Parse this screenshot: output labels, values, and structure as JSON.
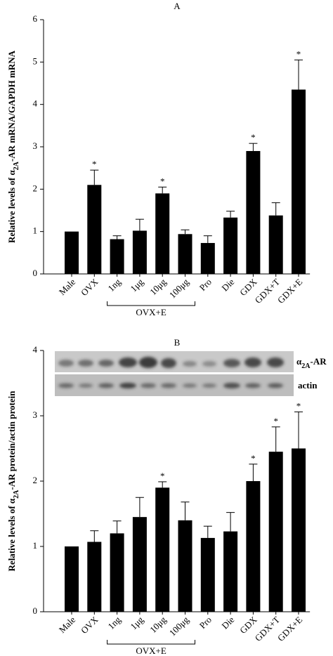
{
  "chart_data": [
    {
      "type": "bar",
      "title": "A",
      "ylabel": [
        "Relative levels of α",
        "2A",
        "-AR mRNA/GAPDH mRNA"
      ],
      "categories": [
        "Male",
        "OVX",
        "1ng",
        "1μg",
        "10μg",
        "100μg",
        "Pro",
        "Die",
        "GDX",
        "GDX+T",
        "GDX+E"
      ],
      "values": [
        1.0,
        2.1,
        0.82,
        1.02,
        1.9,
        0.94,
        0.73,
        1.33,
        2.9,
        1.38,
        4.35
      ],
      "errors": [
        0,
        0.35,
        0.08,
        0.27,
        0.15,
        0.1,
        0.17,
        0.15,
        0.18,
        0.3,
        0.7
      ],
      "color": "#000000",
      "ylim": [
        0,
        6
      ],
      "yticks": [
        0,
        1,
        2,
        3,
        4,
        5,
        6
      ],
      "group_label": "OVX+E",
      "annotations": [
        {
          "text": "*",
          "category": "OVX"
        },
        {
          "text": "*",
          "category": "10μg"
        },
        {
          "text": "*",
          "category": "GDX"
        },
        {
          "text": "*",
          "category": "GDX+E"
        }
      ]
    },
    {
      "type": "bar",
      "title": "B",
      "ylabel": [
        "Relative levels of α",
        "2A",
        "-AR protein/actin protein"
      ],
      "categories": [
        "Male",
        "OVX",
        "1ng",
        "1μg",
        "10μg",
        "100μg",
        "Pro",
        "Die",
        "GDX",
        "GDX+T",
        "GDX+E"
      ],
      "values": [
        1.0,
        1.07,
        1.2,
        1.45,
        1.9,
        1.4,
        1.13,
        1.23,
        2.0,
        2.45,
        2.5
      ],
      "errors": [
        0,
        0.17,
        0.19,
        0.3,
        0.09,
        0.28,
        0.18,
        0.29,
        0.26,
        0.38,
        0.56
      ],
      "color": "#000000",
      "ylim": [
        0,
        4
      ],
      "yticks": [
        0,
        1,
        2,
        3,
        4
      ],
      "group_label": "OVX+E",
      "blot_labels": [
        [
          "α",
          "2A",
          "-AR"
        ],
        "actin"
      ],
      "annotations": [
        {
          "text": "*",
          "category": "10μg"
        },
        {
          "text": "*",
          "category": "GDX"
        },
        {
          "text": "*",
          "category": "GDX+T"
        },
        {
          "text": "*",
          "category": "GDX+E"
        }
      ]
    }
  ]
}
